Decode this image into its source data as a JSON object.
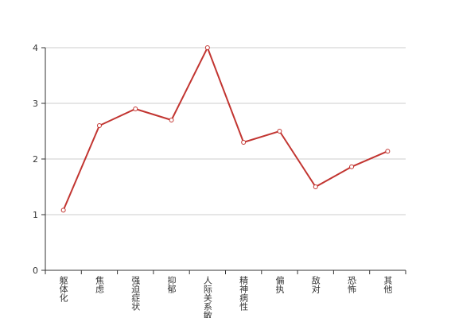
{
  "chart_data": {
    "type": "line",
    "categories": [
      "躯体化",
      "焦虑",
      "强迫症状",
      "抑郁",
      "人际关系敏感",
      "精神病性",
      "偏执",
      "敌对",
      "恐怖",
      "其他"
    ],
    "series": [
      {
        "color": "#c23531",
        "values": [
          1.08,
          2.6,
          2.9,
          2.7,
          4.0,
          2.3,
          2.5,
          1.5,
          1.86,
          2.14
        ]
      }
    ],
    "ylim": [
      0,
      4
    ],
    "yticks": [
      0,
      1,
      2,
      3,
      4
    ],
    "grid": true
  }
}
